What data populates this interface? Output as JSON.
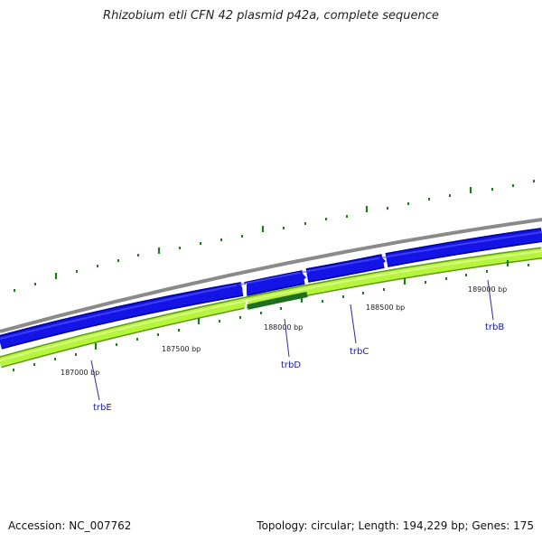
{
  "title": "Rhizobium etli CFN 42 plasmid p42a, complete sequence",
  "footer": {
    "accession": "Accession: NC_007762",
    "summary": "Topology: circular; Length: 194,229 bp; Genes: 175"
  },
  "scale_labels": [
    "187000 bp",
    "187500 bp",
    "188000 bp",
    "188500 bp",
    "189000 bp"
  ],
  "gene_labels": [
    "trbE",
    "trbD",
    "trbC",
    "trbB"
  ],
  "colors": {
    "backbone": "#8a8a8a",
    "forward_cds": "#1010e0",
    "forward_cds_edge": "#00009a",
    "gene_band": "#b6f53c",
    "gene_band_edge": "#5a9a10",
    "gene_highlight": "#2a8a2a",
    "tick": "#1d7a1d",
    "label": "#1a1aa8"
  }
}
